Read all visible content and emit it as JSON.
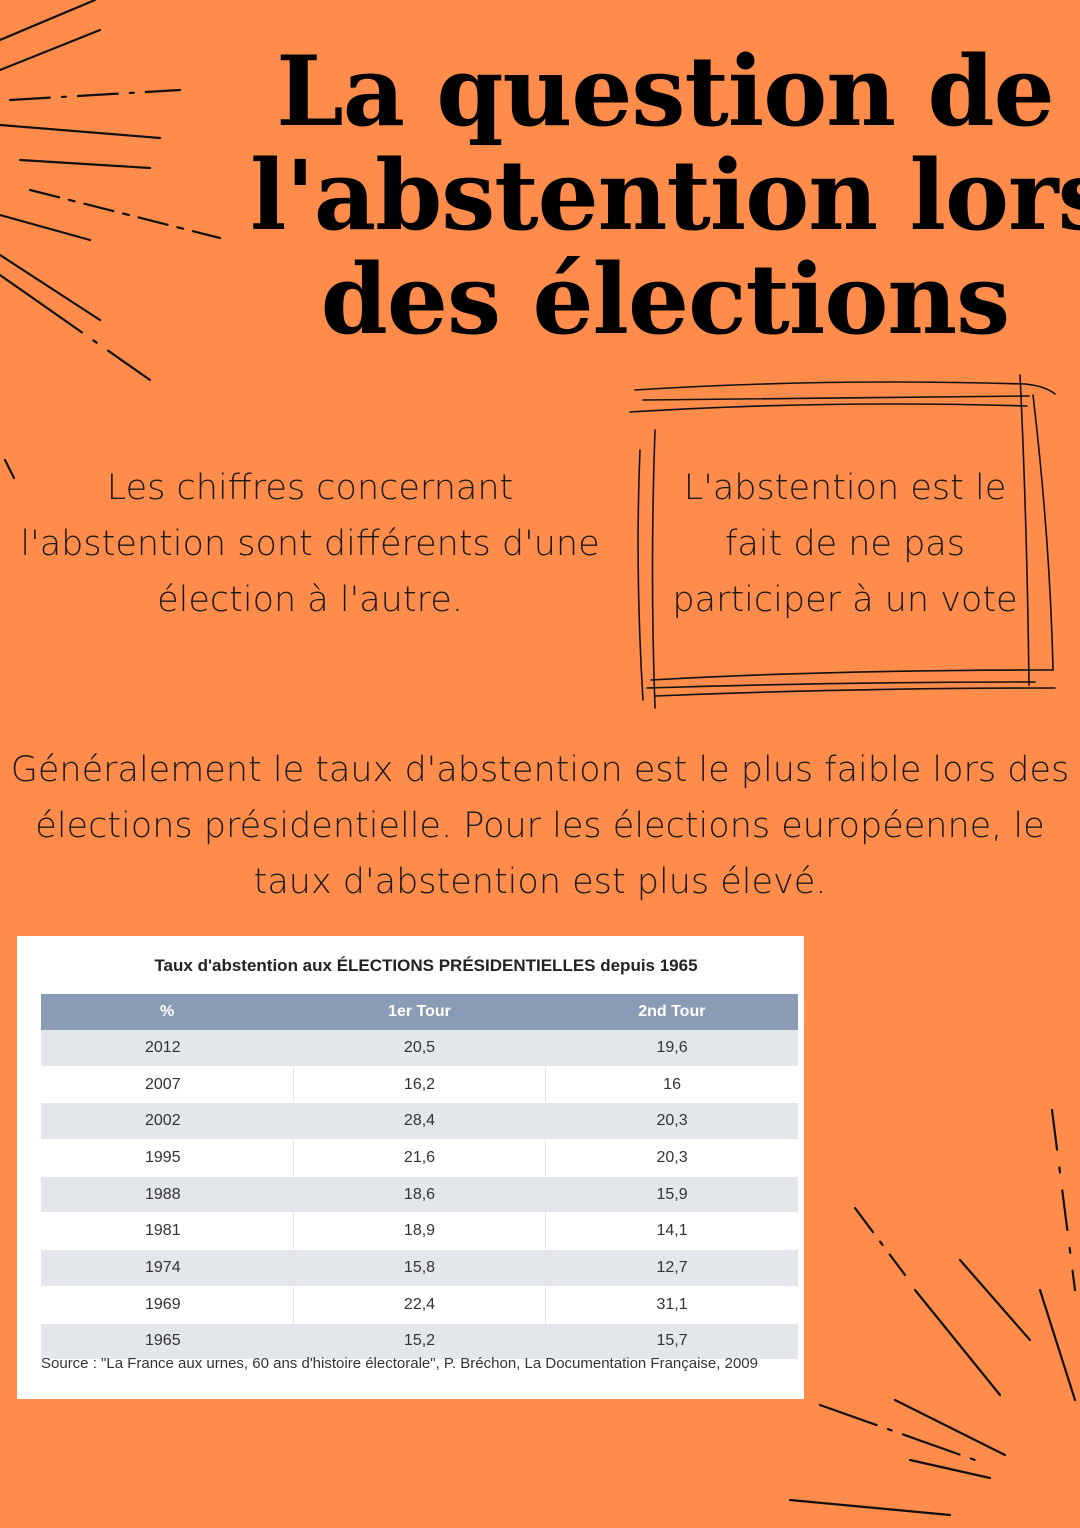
{
  "title": {
    "line1": "La question de",
    "line2": "l'abstention lors",
    "line3": "des élections"
  },
  "left_text": "Les chiffres concernant l'abstention sont différents d'une élection à l'autre.",
  "definition_text": "L'abstention est le fait de ne pas participer à un vote",
  "summary_text": "Généralement le taux d'abstention est le plus faible lors des élections présidentielle. Pour les élections européenne, le taux d'abstention est plus élevé.",
  "table": {
    "caption": "Taux d'abstention aux ÉLECTIONS PRÉSIDENTIELLES depuis 1965",
    "headers": [
      "%",
      "1er Tour",
      "2nd Tour"
    ],
    "rows": [
      [
        "2012",
        "20,5",
        "19,6"
      ],
      [
        "2007",
        "16,2",
        "16"
      ],
      [
        "2002",
        "28,4",
        "20,3"
      ],
      [
        "1995",
        "21,6",
        "20,3"
      ],
      [
        "1988",
        "18,6",
        "15,9"
      ],
      [
        "1981",
        "18,9",
        "14,1"
      ],
      [
        "1974",
        "15,8",
        "12,7"
      ],
      [
        "1969",
        "22,4",
        "31,1"
      ],
      [
        "1965",
        "15,2",
        "15,7"
      ]
    ],
    "source": "Source : \"La France aux urnes, 60 ans d'histoire électorale\", P. Bréchon, La Documentation Française, 2009"
  },
  "colors": {
    "background": "#FF8C4B",
    "table_header": "#8A9BB5",
    "row_shade": "#E3E7EC"
  },
  "icons": [
    "burst-lines-top-left",
    "burst-lines-bottom-right",
    "sketch-frame"
  ]
}
